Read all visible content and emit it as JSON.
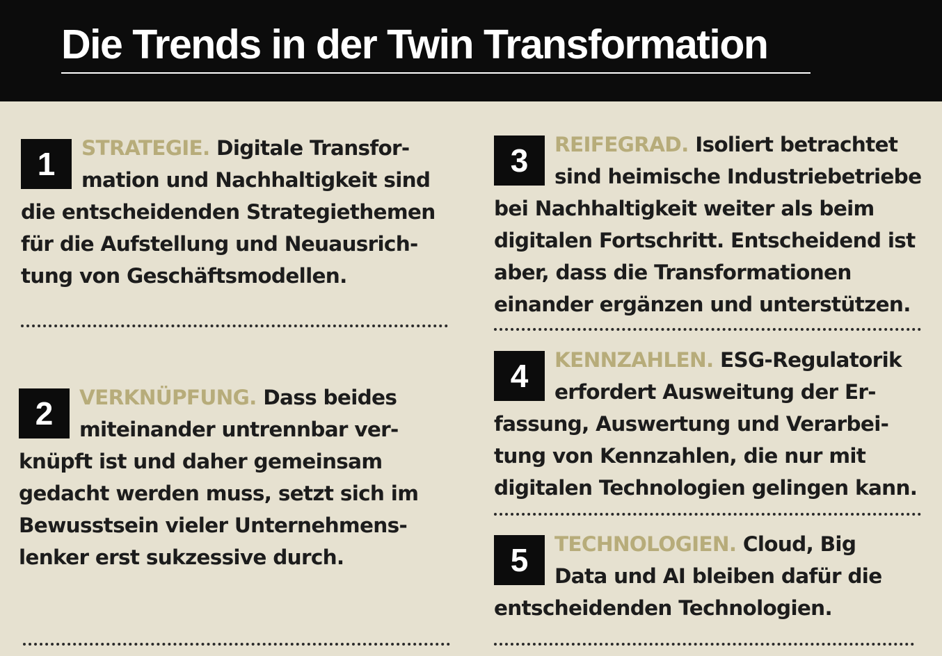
{
  "title": "Die Trends in der Twin Transformation",
  "items": [
    {
      "number": "1",
      "keyword": "STRATEGIE.",
      "text": "Digitale Transfor­mation und Nachhaltigkeit sind die entscheidenden Strategiethemen für die Aufstellung und Neuausrich­tung von Geschäftsmodellen."
    },
    {
      "number": "2",
      "keyword": "VERKNÜPFUNG.",
      "text": "Dass beides miteinander untrennbar ver­knüpft ist und daher gemeinsam gedacht werden muss, setzt sich im Bewusstsein vieler Unternehmens­lenker erst sukzessive durch."
    },
    {
      "number": "3",
      "keyword": "REIFEGRAD.",
      "text": "Isoliert betrachtet sind heimische Industriebetrie­be bei Nachhaltigkeit weiter als beim digitalen Fortschritt. Entscheidend ist aber, dass die Transformationen einander ergänzen und unterstützen."
    },
    {
      "number": "4",
      "keyword": "KENNZAHLEN.",
      "text": "ESG-Regulatorik erfordert Ausweitung der Er­fassung, Auswertung und Verarbei­tung von Kennzahlen, die nur mit digitalen Technologien gelingen kann."
    },
    {
      "number": "5",
      "keyword": "TECHNOLOGIEN.",
      "text": "Cloud, Big Data und AI bleiben dafür die entscheidenden Technologien."
    }
  ]
}
